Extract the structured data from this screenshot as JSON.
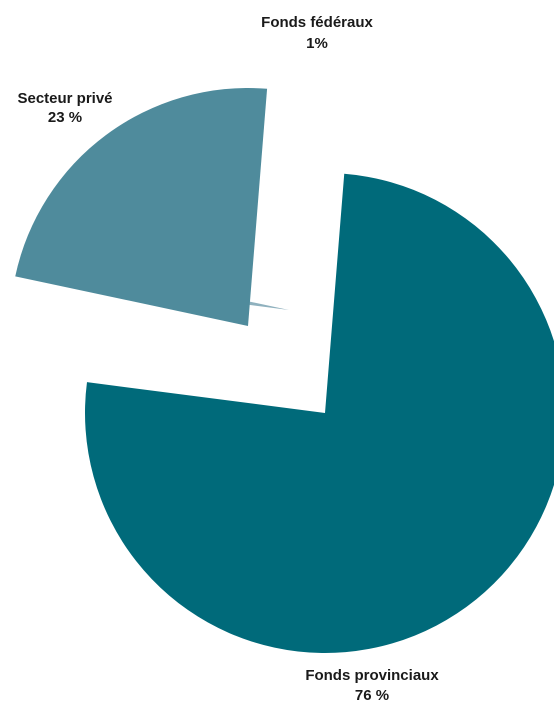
{
  "chart_data": {
    "type": "pie",
    "slices": [
      {
        "label": "Fonds provinciaux",
        "value_label": "76 %",
        "value": 76,
        "color": "#006a7a"
      },
      {
        "label": "Fonds fédéraux",
        "value_label": "1%",
        "value": 1.3,
        "color": "#8fb1be"
      },
      {
        "label": "Secteur privé",
        "value_label": "23 %",
        "value": 23,
        "color": "#4f8b9c"
      }
    ],
    "exploded": true,
    "legend": "none"
  }
}
